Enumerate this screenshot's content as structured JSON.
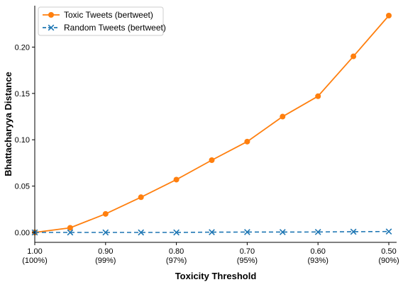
{
  "chart_data": {
    "type": "line",
    "xlabel": "Toxicity Threshold",
    "ylabel": "Bhattacharyya Distance",
    "x": [
      1.0,
      0.95,
      0.9,
      0.85,
      0.8,
      0.75,
      0.7,
      0.65,
      0.6,
      0.55,
      0.5
    ],
    "xlim": [
      1.0,
      0.5
    ],
    "x_reversed": true,
    "x_ticks": [
      {
        "value": 1.0,
        "label": "1.00",
        "sublabel": "(100%)"
      },
      {
        "value": 0.9,
        "label": "0.90",
        "sublabel": "(99%)"
      },
      {
        "value": 0.8,
        "label": "0.80",
        "sublabel": "(97%)"
      },
      {
        "value": 0.7,
        "label": "0.70",
        "sublabel": "(95%)"
      },
      {
        "value": 0.6,
        "label": "0.60",
        "sublabel": "(93%)"
      },
      {
        "value": 0.5,
        "label": "0.50",
        "sublabel": "(90%)"
      }
    ],
    "ylim": [
      -0.012,
      0.245
    ],
    "y_ticks": [
      {
        "value": 0.0,
        "label": "0.00"
      },
      {
        "value": 0.05,
        "label": "0.05"
      },
      {
        "value": 0.1,
        "label": "0.10"
      },
      {
        "value": 0.15,
        "label": "0.15"
      },
      {
        "value": 0.2,
        "label": "0.20"
      }
    ],
    "grid": false,
    "legend_position": "top-left",
    "series": [
      {
        "name": "Toxic Tweets (bertweet)",
        "color": "#ff7f0e",
        "marker": "circle",
        "linestyle": "solid",
        "values": [
          0.0,
          0.005,
          0.02,
          0.038,
          0.057,
          0.078,
          0.098,
          0.125,
          0.147,
          0.19,
          0.234
        ]
      },
      {
        "name": "Random Tweets (bertweet)",
        "color": "#1f77b4",
        "marker": "x",
        "linestyle": "dashed",
        "values": [
          0.0,
          0.0,
          0.0,
          0.0,
          0.0,
          0.0003,
          0.0004,
          0.0004,
          0.0005,
          0.0008,
          0.001
        ]
      }
    ]
  }
}
